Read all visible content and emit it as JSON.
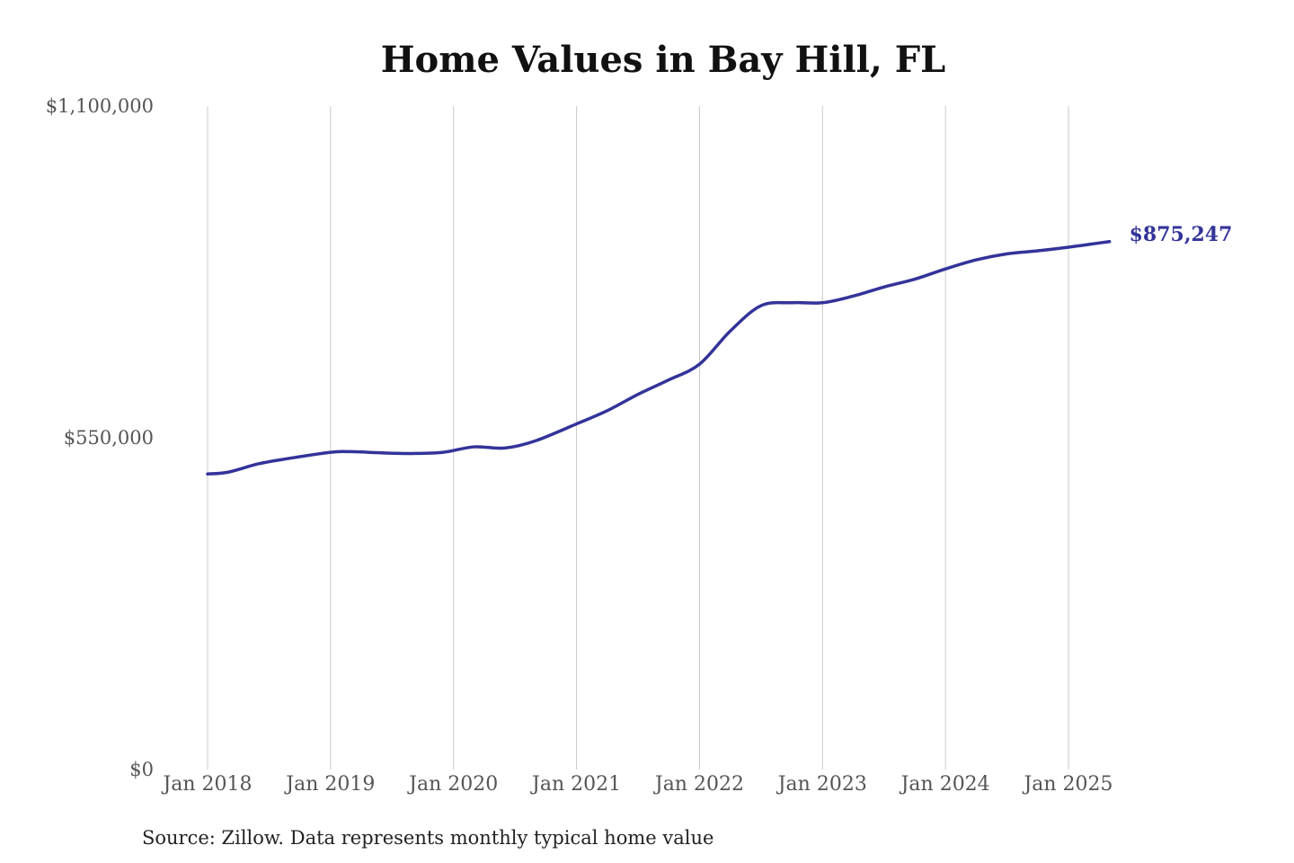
{
  "chart_data": {
    "type": "line",
    "title": "Home Values in Bay Hill, FL",
    "xlabel": "",
    "ylabel": "",
    "ylim": [
      0,
      1100000
    ],
    "y_ticks": [
      {
        "value": 1100000,
        "label": "$1,100,000"
      },
      {
        "value": 550000,
        "label": "$550,000"
      },
      {
        "value": 0,
        "label": "$0"
      }
    ],
    "x_ticks": [
      {
        "value": "2018-01",
        "label": "Jan 2018"
      },
      {
        "value": "2019-01",
        "label": "Jan 2019"
      },
      {
        "value": "2020-01",
        "label": "Jan 2020"
      },
      {
        "value": "2021-01",
        "label": "Jan 2021"
      },
      {
        "value": "2022-01",
        "label": "Jan 2022"
      },
      {
        "value": "2023-01",
        "label": "Jan 2023"
      },
      {
        "value": "2024-01",
        "label": "Jan 2024"
      },
      {
        "value": "2025-01",
        "label": "Jan 2025"
      }
    ],
    "grid": "vertical",
    "series": [
      {
        "color": "#33339a",
        "end_label": "$875,247",
        "points": [
          {
            "x": "2018-01",
            "y": 490000
          },
          {
            "x": "2018-03",
            "y": 493000
          },
          {
            "x": "2018-06",
            "y": 507000
          },
          {
            "x": "2018-09",
            "y": 516000
          },
          {
            "x": "2019-01",
            "y": 526000
          },
          {
            "x": "2019-03",
            "y": 527000
          },
          {
            "x": "2019-06",
            "y": 525000
          },
          {
            "x": "2019-09",
            "y": 524000
          },
          {
            "x": "2019-12",
            "y": 526000
          },
          {
            "x": "2020-03",
            "y": 535000
          },
          {
            "x": "2020-06",
            "y": 533000
          },
          {
            "x": "2020-09",
            "y": 545000
          },
          {
            "x": "2021-01",
            "y": 573000
          },
          {
            "x": "2021-04",
            "y": 595000
          },
          {
            "x": "2021-07",
            "y": 622000
          },
          {
            "x": "2021-10",
            "y": 646000
          },
          {
            "x": "2022-01",
            "y": 672000
          },
          {
            "x": "2022-04",
            "y": 727000
          },
          {
            "x": "2022-07",
            "y": 769000
          },
          {
            "x": "2022-10",
            "y": 774000
          },
          {
            "x": "2023-01",
            "y": 774000
          },
          {
            "x": "2023-04",
            "y": 785000
          },
          {
            "x": "2023-07",
            "y": 800000
          },
          {
            "x": "2023-10",
            "y": 813000
          },
          {
            "x": "2024-01",
            "y": 830000
          },
          {
            "x": "2024-04",
            "y": 845000
          },
          {
            "x": "2024-07",
            "y": 855000
          },
          {
            "x": "2024-10",
            "y": 860000
          },
          {
            "x": "2025-01",
            "y": 866000
          },
          {
            "x": "2025-04",
            "y": 873000
          },
          {
            "x": "2025-05",
            "y": 875247
          }
        ]
      }
    ],
    "source": "Source: Zillow. Data represents monthly typical home value"
  }
}
